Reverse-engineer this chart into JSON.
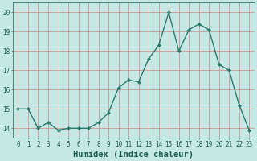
{
  "x": [
    0,
    1,
    2,
    3,
    4,
    5,
    6,
    7,
    8,
    9,
    10,
    11,
    12,
    13,
    14,
    15,
    16,
    17,
    18,
    19,
    20,
    21,
    22,
    23
  ],
  "y": [
    15.0,
    15.0,
    14.0,
    14.3,
    13.9,
    14.0,
    14.0,
    14.0,
    14.3,
    14.8,
    16.1,
    16.5,
    16.4,
    17.6,
    18.3,
    20.0,
    18.0,
    19.1,
    19.4,
    19.1,
    17.3,
    17.0,
    15.2,
    13.9
  ],
  "line_color": "#2a7a6a",
  "marker": "D",
  "marker_size": 2.2,
  "background_color": "#c5e8e5",
  "grid_color": "#d07878",
  "xlabel": "Humidex (Indice chaleur)",
  "xlim": [
    -0.5,
    23.5
  ],
  "ylim": [
    13.5,
    20.5
  ],
  "yticks": [
    14,
    15,
    16,
    17,
    18,
    19,
    20
  ],
  "xticks": [
    0,
    1,
    2,
    3,
    4,
    5,
    6,
    7,
    8,
    9,
    10,
    11,
    12,
    13,
    14,
    15,
    16,
    17,
    18,
    19,
    20,
    21,
    22,
    23
  ],
  "tick_label_color": "#1a5c50",
  "tick_label_fontsize": 5.5,
  "xlabel_fontsize": 7.5,
  "xlabel_color": "#1a5c50",
  "line_width": 1.0
}
